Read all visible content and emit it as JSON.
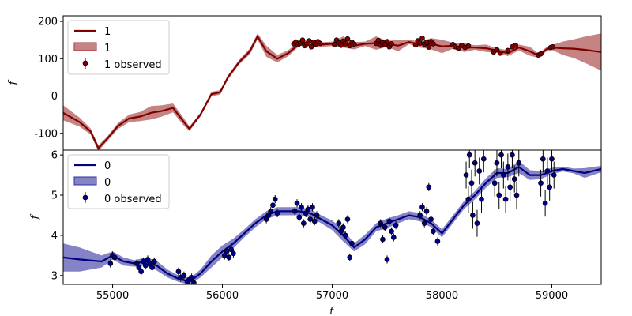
{
  "chart_data": [
    {
      "type": "line",
      "panel": "top",
      "xlabel": "",
      "ylabel": "f",
      "xlim": [
        54550,
        59450
      ],
      "ylim": [
        -145,
        215
      ],
      "yticks": [
        -100,
        0,
        100,
        200
      ],
      "legend": {
        "placement": "top-left",
        "entries": [
          "1",
          "1",
          "1 observed"
        ]
      },
      "colors": {
        "line": "#800000",
        "band": "#a03030",
        "marker": "#800000"
      },
      "series": [
        {
          "name": "1",
          "kind": "model",
          "x": [
            54550,
            54700,
            54800,
            54870,
            54950,
            55050,
            55150,
            55250,
            55350,
            55450,
            55550,
            55650,
            55700,
            55800,
            55900,
            55980,
            56050,
            56150,
            56250,
            56320,
            56400,
            56500,
            56600,
            56700,
            56800,
            56900,
            57000,
            57100,
            57200,
            57300,
            57400,
            57500,
            57600,
            57700,
            57800,
            57900,
            58000,
            58100,
            58200,
            58300,
            58400,
            58500,
            58600,
            58700,
            58800,
            58880,
            58950,
            59000,
            59100,
            59200,
            59300,
            59450
          ],
          "y": [
            -45,
            -70,
            -95,
            -140,
            -115,
            -80,
            -60,
            -55,
            -45,
            -40,
            -32,
            -70,
            -88,
            -50,
            5,
            10,
            50,
            90,
            120,
            160,
            120,
            100,
            115,
            140,
            145,
            138,
            140,
            145,
            135,
            140,
            142,
            140,
            135,
            145,
            138,
            140,
            133,
            135,
            130,
            130,
            128,
            122,
            115,
            130,
            120,
            108,
            125,
            130,
            128,
            127,
            124,
            118
          ],
          "band_halfwidth": [
            20,
            12,
            8,
            8,
            6,
            8,
            10,
            12,
            18,
            15,
            12,
            10,
            6,
            5,
            6,
            6,
            6,
            6,
            8,
            8,
            15,
            10,
            8,
            6,
            8,
            6,
            6,
            15,
            10,
            6,
            18,
            8,
            15,
            6,
            8,
            15,
            18,
            8,
            12,
            6,
            10,
            6,
            8,
            8,
            12,
            6,
            6,
            6,
            18,
            25,
            35,
            50
          ]
        },
        {
          "name": "1 observed",
          "kind": "observed",
          "x": [
            56650,
            56670,
            56690,
            56710,
            56730,
            56750,
            56770,
            56790,
            56810,
            56830,
            56850,
            56870,
            56890,
            57020,
            57040,
            57060,
            57080,
            57100,
            57120,
            57140,
            57160,
            57180,
            57200,
            57400,
            57420,
            57440,
            57460,
            57480,
            57500,
            57520,
            57540,
            57760,
            57780,
            57800,
            57820,
            57840,
            57860,
            57880,
            57900,
            57920,
            58100,
            58120,
            58150,
            58180,
            58210,
            58240,
            58470,
            58500,
            58530,
            58600,
            58640,
            58670,
            58880,
            58900,
            58990,
            59010
          ],
          "y": [
            140,
            145,
            138,
            142,
            150,
            135,
            140,
            148,
            132,
            144,
            139,
            146,
            141,
            138,
            150,
            142,
            136,
            147,
            140,
            153,
            135,
            144,
            139,
            141,
            149,
            136,
            143,
            138,
            146,
            132,
            140,
            137,
            148,
            142,
            155,
            139,
            144,
            131,
            146,
            140,
            138,
            132,
            128,
            136,
            130,
            134,
            118,
            124,
            115,
            122,
            132,
            136,
            110,
            113,
            130,
            132
          ]
        }
      ]
    },
    {
      "type": "line",
      "panel": "bottom",
      "xlabel": "t",
      "ylabel": "f",
      "xlim": [
        54550,
        59450
      ],
      "ylim": [
        2.78,
        6.12
      ],
      "yticks": [
        3,
        4,
        5,
        6
      ],
      "xticks": [
        55000,
        56000,
        57000,
        58000,
        59000
      ],
      "legend": {
        "placement": "top-left",
        "entries": [
          "0",
          "0",
          "0 observed"
        ]
      },
      "colors": {
        "line": "#000080",
        "band": "#3030a0",
        "marker": "#000080"
      },
      "series": [
        {
          "name": "0",
          "kind": "model",
          "x": [
            54550,
            54700,
            54900,
            55000,
            55100,
            55200,
            55300,
            55400,
            55500,
            55600,
            55700,
            55800,
            55900,
            56000,
            56100,
            56200,
            56300,
            56400,
            56500,
            56600,
            56700,
            56800,
            56900,
            57000,
            57100,
            57200,
            57300,
            57400,
            57500,
            57600,
            57700,
            57800,
            57900,
            58000,
            58100,
            58200,
            58300,
            58400,
            58500,
            58600,
            58700,
            58800,
            58900,
            59000,
            59100,
            59200,
            59300,
            59450
          ],
          "y": [
            3.45,
            3.4,
            3.35,
            3.5,
            3.35,
            3.3,
            3.35,
            3.25,
            3.05,
            2.92,
            2.85,
            3.05,
            3.35,
            3.6,
            3.8,
            4.05,
            4.3,
            4.5,
            4.6,
            4.6,
            4.6,
            4.55,
            4.4,
            4.25,
            4.0,
            3.7,
            3.9,
            4.2,
            4.3,
            4.4,
            4.5,
            4.45,
            4.3,
            4.05,
            4.4,
            4.75,
            5.0,
            5.3,
            5.55,
            5.55,
            5.7,
            5.5,
            5.5,
            5.6,
            5.65,
            5.6,
            5.55,
            5.65
          ],
          "band_halfwidth": [
            0.35,
            0.3,
            0.15,
            0.1,
            0.1,
            0.08,
            0.1,
            0.12,
            0.1,
            0.08,
            0.08,
            0.1,
            0.15,
            0.15,
            0.12,
            0.1,
            0.1,
            0.1,
            0.1,
            0.1,
            0.1,
            0.1,
            0.1,
            0.12,
            0.15,
            0.1,
            0.12,
            0.1,
            0.12,
            0.1,
            0.1,
            0.1,
            0.1,
            0.1,
            0.1,
            0.1,
            0.1,
            0.12,
            0.12,
            0.1,
            0.15,
            0.12,
            0.1,
            0.08,
            0.06,
            0.06,
            0.12,
            0.08
          ]
        },
        {
          "name": "0 observed",
          "kind": "observed",
          "x": [
            54980,
            55000,
            55020,
            55220,
            55240,
            55260,
            55280,
            55300,
            55320,
            55340,
            55360,
            55380,
            55600,
            55620,
            55650,
            55680,
            55700,
            55720,
            55740,
            56020,
            56040,
            56060,
            56080,
            56100,
            56400,
            56420,
            56440,
            56460,
            56480,
            56500,
            56660,
            56680,
            56700,
            56720,
            56740,
            56760,
            56780,
            56800,
            56820,
            56840,
            56860,
            57060,
            57080,
            57100,
            57120,
            57140,
            57160,
            57180,
            57440,
            57460,
            57480,
            57500,
            57520,
            57540,
            57560,
            57580,
            57800,
            57820,
            57840,
            57860,
            57880,
            57900,
            57920,
            57960,
            58220,
            58240,
            58250,
            58270,
            58280,
            58300,
            58320,
            58340,
            58360,
            58380,
            58480,
            58500,
            58520,
            58540,
            58560,
            58580,
            58600,
            58620,
            58640,
            58660,
            58680,
            58700,
            58900,
            58920,
            58940,
            58960,
            58980,
            59000,
            59020
          ],
          "y": [
            3.3,
            3.5,
            3.45,
            3.3,
            3.2,
            3.1,
            3.35,
            3.25,
            3.4,
            3.3,
            3.2,
            3.35,
            3.1,
            2.95,
            3.0,
            2.85,
            2.9,
            2.95,
            2.82,
            3.5,
            3.6,
            3.45,
            3.65,
            3.55,
            4.4,
            4.5,
            4.6,
            4.75,
            4.9,
            4.55,
            4.6,
            4.8,
            4.45,
            4.7,
            4.3,
            4.55,
            4.65,
            4.4,
            4.7,
            4.35,
            4.5,
            4.3,
            4.1,
            4.2,
            4.0,
            4.4,
            3.45,
            3.8,
            4.3,
            3.9,
            4.2,
            3.4,
            4.35,
            4.1,
            3.95,
            4.25,
            4.5,
            4.7,
            4.3,
            4.6,
            5.2,
            4.4,
            4.1,
            3.85,
            5.5,
            4.9,
            6.0,
            5.3,
            4.5,
            5.8,
            4.3,
            5.6,
            4.9,
            5.9,
            5.3,
            5.8,
            5.0,
            6.0,
            5.5,
            4.9,
            5.7,
            5.2,
            6.0,
            5.4,
            5.0,
            5.8,
            5.3,
            5.9,
            4.8,
            5.6,
            5.2,
            5.9,
            5.5
          ]
        }
      ]
    }
  ]
}
